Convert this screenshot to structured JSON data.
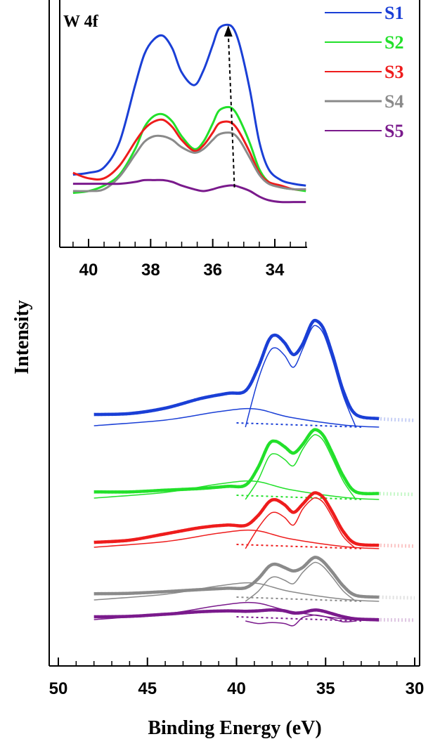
{
  "chart_data": [
    {
      "type": "line",
      "panel": "main",
      "xlabel": "Binding Energy (eV)",
      "ylabel": "Intensity",
      "xlim": [
        50,
        30
      ],
      "x_reversed": true,
      "xticks": [
        50,
        45,
        40,
        35,
        30
      ],
      "yticks": [],
      "grid": false,
      "legend": "none",
      "series": [
        {
          "color": "#1a3fd6",
          "offset": 0,
          "x": [
            52,
            48,
            46,
            44,
            42,
            40.5,
            39.5,
            38.8,
            38.2,
            37.8,
            37.3,
            36.8,
            36.3,
            35.8,
            35.5,
            35.1,
            34.6,
            34.0,
            33.3,
            32,
            30
          ],
          "y": [
            35,
            30,
            32,
            45,
            68,
            80,
            86,
            140,
            205,
            218,
            200,
            172,
            196,
            245,
            252,
            232,
            170,
            85,
            30,
            20,
            16
          ]
        },
        {
          "color": "#22e02a",
          "offset": 0,
          "x": [
            52,
            48,
            46,
            44,
            42,
            40.5,
            39.5,
            38.8,
            38.2,
            37.8,
            37.3,
            36.8,
            36.3,
            35.8,
            35.5,
            35.1,
            34.6,
            34.0,
            33.3,
            32,
            30
          ],
          "y": [
            22,
            18,
            18,
            22,
            26,
            31,
            34,
            75,
            130,
            138,
            125,
            110,
            130,
            160,
            165,
            150,
            108,
            55,
            18,
            14,
            12
          ]
        },
        {
          "color": "#ee1c1c",
          "offset": 0,
          "x": [
            52,
            48,
            46,
            44,
            42,
            40.5,
            39.5,
            38.8,
            38.2,
            37.8,
            37.3,
            36.8,
            36.3,
            35.8,
            35.5,
            35.1,
            34.6,
            34.0,
            33.3,
            32,
            30
          ],
          "y": [
            20,
            15,
            20,
            35,
            50,
            56,
            55,
            78,
            110,
            116,
            104,
            86,
            105,
            128,
            132,
            120,
            85,
            40,
            12,
            8,
            6
          ]
        },
        {
          "color": "#8a8a8a",
          "offset": 0,
          "x": [
            52,
            48,
            46,
            44,
            42,
            40.5,
            39.5,
            38.8,
            38.2,
            37.8,
            37.3,
            36.8,
            36.3,
            35.8,
            35.5,
            35.1,
            34.6,
            34.0,
            33.3,
            32,
            30
          ],
          "y": [
            20,
            18,
            19,
            23,
            28,
            31,
            32,
            53,
            82,
            88,
            80,
            72,
            80,
            100,
            104,
            93,
            68,
            36,
            14,
            10,
            8
          ]
        },
        {
          "color": "#7a1a8c",
          "offset": 0,
          "x": [
            52,
            48,
            46,
            44,
            42,
            40.5,
            39.5,
            38.8,
            38.2,
            37.8,
            37.3,
            36.8,
            36.3,
            35.8,
            35.5,
            35.1,
            34.6,
            34.0,
            33.3,
            32,
            30
          ],
          "y": [
            14,
            10,
            11,
            16,
            22,
            24,
            23,
            24,
            26,
            26,
            24,
            19,
            20,
            25,
            26,
            23,
            17,
            10,
            5,
            3,
            2
          ]
        }
      ]
    },
    {
      "type": "line",
      "panel": "inset",
      "title": "W 4f",
      "xlim": [
        41,
        33
      ],
      "x_reversed": true,
      "xticks": [
        40,
        38,
        36,
        34
      ],
      "legend": "top-right",
      "series": [
        {
          "name": "S1",
          "color": "#1a3fd6",
          "x": [
            41,
            40.5,
            40,
            39.5,
            39,
            38.5,
            38.2,
            37.9,
            37.6,
            37.3,
            37,
            36.6,
            36.3,
            36,
            35.8,
            35.5,
            35.3,
            35.1,
            34.8,
            34.5,
            34.2,
            33.8,
            33.4,
            33
          ],
          "y": [
            8,
            9,
            10,
            13,
            27,
            58,
            75,
            83,
            85,
            78,
            65,
            58,
            66,
            80,
            89,
            91,
            88,
            78,
            55,
            27,
            12,
            6,
            4,
            3
          ]
        },
        {
          "name": "S2",
          "color": "#22e02a",
          "x": [
            41,
            40.5,
            40,
            39.5,
            39,
            38.5,
            38.2,
            37.9,
            37.6,
            37.3,
            37,
            36.6,
            36.3,
            36,
            35.8,
            35.5,
            35.3,
            35.1,
            34.8,
            34.5,
            34.2,
            33.8,
            33.4,
            33
          ],
          "y": [
            -1,
            -1,
            0,
            3,
            9,
            23,
            35,
            41,
            42,
            38,
            30,
            23,
            27,
            37,
            44,
            46,
            44,
            38,
            26,
            12,
            5,
            2,
            1,
            0
          ]
        },
        {
          "name": "S3",
          "color": "#ee1c1c",
          "x": [
            41,
            40.5,
            40,
            39.5,
            39,
            38.5,
            38.2,
            37.9,
            37.6,
            37.3,
            37,
            36.6,
            36.3,
            36,
            35.8,
            35.5,
            35.3,
            35.1,
            34.8,
            34.5,
            34.2,
            33.8,
            33.4,
            33
          ],
          "y": [
            8,
            10,
            7,
            7,
            14,
            27,
            34,
            38,
            39,
            35,
            28,
            22,
            25,
            32,
            37,
            38,
            36,
            31,
            21,
            10,
            5,
            3,
            1,
            1
          ]
        },
        {
          "name": "S4",
          "color": "#8a8a8a",
          "x": [
            41,
            40.5,
            40,
            39.5,
            39,
            38.5,
            38.2,
            37.9,
            37.6,
            37.3,
            37,
            36.6,
            36.3,
            36,
            35.8,
            35.5,
            35.3,
            35.1,
            34.8,
            34.5,
            34.2,
            33.8,
            33.4,
            33
          ],
          "y": [
            0,
            0,
            0,
            1,
            8,
            20,
            27,
            30,
            30,
            28,
            24,
            21,
            23,
            28,
            31,
            32,
            31,
            27,
            18,
            9,
            4,
            2,
            1,
            1
          ]
        },
        {
          "name": "S5",
          "color": "#7a1a8c",
          "x": [
            41,
            40.5,
            40,
            39.5,
            39,
            38.5,
            38.2,
            37.9,
            37.6,
            37.3,
            37,
            36.6,
            36.3,
            36,
            35.8,
            35.5,
            35.3,
            35.1,
            34.8,
            34.5,
            34.2,
            33.8,
            33.4,
            33
          ],
          "y": [
            4,
            4,
            4,
            4,
            4,
            5,
            6,
            6,
            6,
            5,
            3,
            1,
            0,
            1,
            2,
            3,
            3,
            2,
            0,
            -3,
            -5,
            -6,
            -6,
            -6
          ]
        }
      ],
      "annotation": {
        "type": "dashed-arrow",
        "from": [
          35.3,
          2
        ],
        "to": [
          35.5,
          90
        ]
      }
    }
  ]
}
